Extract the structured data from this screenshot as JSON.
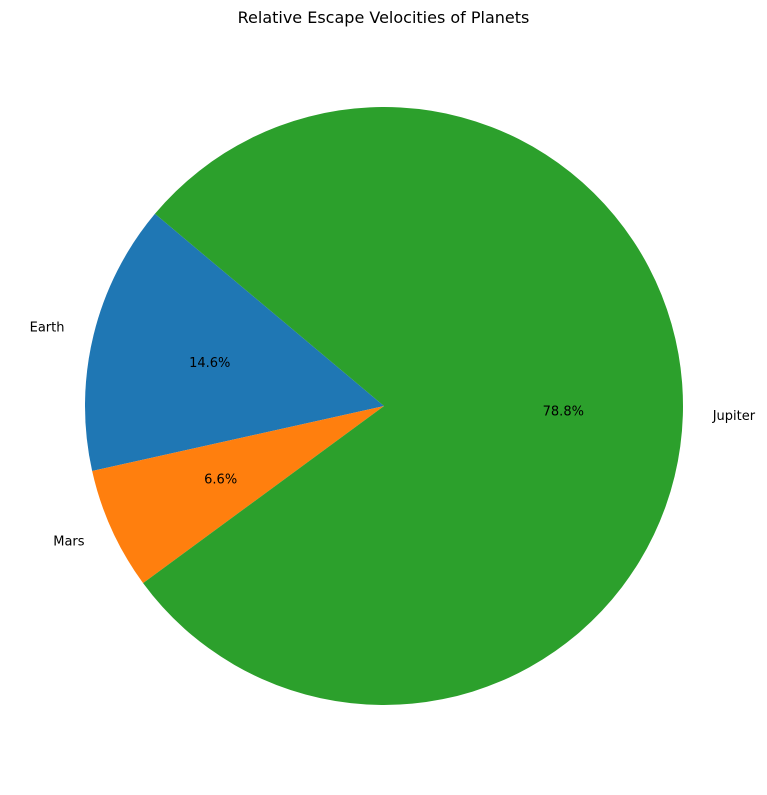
{
  "chart_data": {
    "type": "pie",
    "title": "Relative Escape Velocities of Planets",
    "start_angle_deg": 140,
    "direction": "counterclockwise",
    "slices": [
      {
        "label": "Earth",
        "value": 14.6,
        "pct_label": "14.6%",
        "color": "#1f77b4"
      },
      {
        "label": "Mars",
        "value": 6.6,
        "pct_label": "6.6%",
        "color": "#ff7f0e"
      },
      {
        "label": "Jupiter",
        "value": 78.8,
        "pct_label": "78.8%",
        "color": "#2ca02c"
      }
    ]
  }
}
